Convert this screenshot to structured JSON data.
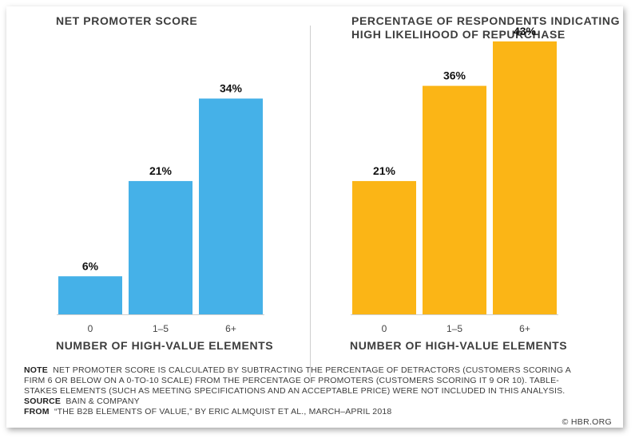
{
  "chart_data": [
    {
      "type": "bar",
      "title": "NET PROMOTER SCORE",
      "xlabel": "NUMBER OF HIGH-VALUE ELEMENTS",
      "categories": [
        "0",
        "1–5",
        "6+"
      ],
      "values": [
        6,
        21,
        34
      ],
      "value_labels": [
        "6%",
        "21%",
        "34%"
      ],
      "ylim": [
        0,
        45
      ],
      "color": "#45b1e8",
      "grid": false,
      "legend": "none"
    },
    {
      "type": "bar",
      "title": "PERCENTAGE OF RESPONDENTS INDICATING HIGH LIKELIHOOD OF REPURCHASE",
      "xlabel": "NUMBER OF HIGH-VALUE ELEMENTS",
      "categories": [
        "0",
        "1–5",
        "6+"
      ],
      "values": [
        21,
        36,
        43
      ],
      "value_labels": [
        "21%",
        "36%",
        "43%"
      ],
      "ylim": [
        0,
        45
      ],
      "color": "#fbb516",
      "grid": false,
      "legend": "none"
    }
  ],
  "notes": {
    "note_label": "NOTE",
    "note_text": "NET PROMOTER SCORE IS CALCULATED BY SUBTRACTING THE PERCENTAGE OF DETRACTORS (CUSTOMERS SCORING A FIRM 6 OR BELOW ON A 0-TO-10 SCALE) FROM THE PERCENTAGE OF PROMOTERS (CUSTOMERS SCORING IT 9 OR 10). TABLE-STAKES ELEMENTS (SUCH AS MEETING SPECIFICATIONS AND AN ACCEPTABLE PRICE) WERE NOT INCLUDED IN THIS ANALYSIS.",
    "source_label": "SOURCE",
    "source_text": "BAIN & COMPANY",
    "from_label": "FROM",
    "from_text": "“THE B2B ELEMENTS OF VALUE,” BY ERIC ALMQUIST ET AL., MARCH–APRIL 2018"
  },
  "brand": "© HBR.ORG"
}
